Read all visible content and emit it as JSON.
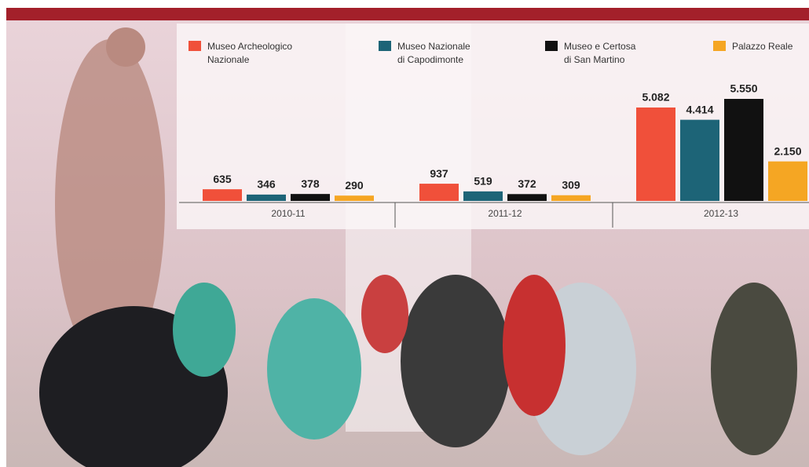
{
  "chart_data": {
    "type": "bar",
    "categories": [
      "2010-11",
      "2011-12",
      "2012-13"
    ],
    "series": [
      {
        "name": "Museo Archeologico Nazionale",
        "color": "#f0503a",
        "values": [
          635,
          937,
          5082
        ],
        "value_labels": [
          "635",
          "937",
          "5.082"
        ]
      },
      {
        "name": "Museo Nazionale di Capodimonte",
        "color": "#1d6477",
        "values": [
          346,
          519,
          4414
        ],
        "value_labels": [
          "346",
          "519",
          "4.414"
        ]
      },
      {
        "name": "Museo e Certosa di San Martino",
        "color": "#111111",
        "values": [
          378,
          372,
          5550
        ],
        "value_labels": [
          "378",
          "372",
          "5.550"
        ]
      },
      {
        "name": "Palazzo Reale",
        "color": "#f5a623",
        "values": [
          290,
          309,
          2150
        ],
        "value_labels": [
          "290",
          "309",
          "2.150"
        ]
      }
    ]
  }
}
